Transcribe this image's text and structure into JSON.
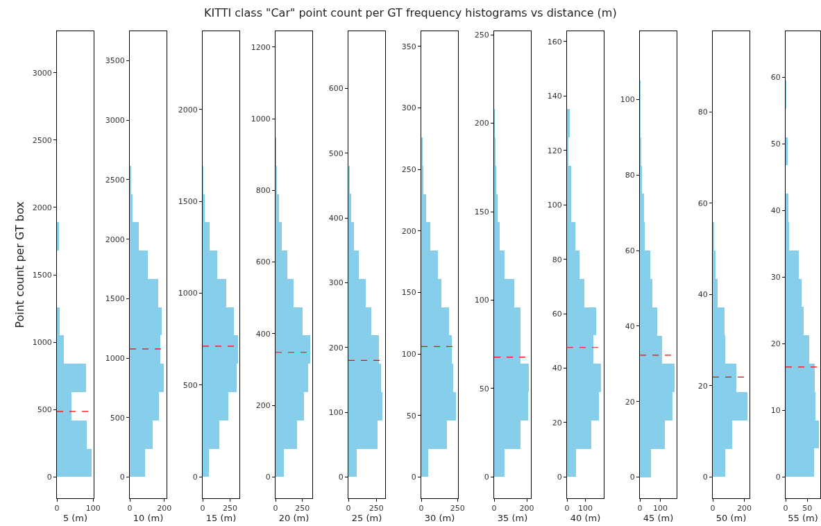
{
  "chart_data": [
    {
      "type": "histogram",
      "orientation": "horizontal",
      "ylabel": "Point count per GT box",
      "xlabel": "5 (m)",
      "color": "#87ceeb",
      "bins": [
        0,
        210,
        420,
        630,
        840,
        1050,
        1260,
        1470,
        1680,
        1890
      ],
      "values": [
        96,
        83,
        40,
        81,
        19,
        8,
        0,
        0,
        5
      ],
      "xlim": [
        0,
        101.5
      ],
      "xticks": [
        0,
        100
      ],
      "ylim": [
        -157.5,
        3307.5
      ],
      "yticks": [
        0,
        500,
        1000,
        1500,
        2000,
        2500,
        3000
      ],
      "ref_lines": [
        {
          "axis": "y",
          "value": 487,
          "color": "#ff0000",
          "line_style": "dashed"
        }
      ]
    },
    {
      "type": "histogram",
      "orientation": "horizontal",
      "xlabel": "10 (m)",
      "color": "#87ceeb",
      "bins": [
        0,
        238,
        476,
        714,
        952,
        1190,
        1428,
        1666,
        1904,
        2142,
        2380,
        2618
      ],
      "values": [
        88,
        132,
        169,
        198,
        176,
        183,
        163,
        103,
        53,
        18,
        6
      ],
      "xlim": [
        0,
        213
      ],
      "xticks": [
        0,
        200
      ],
      "ylim": [
        -178.5,
        3748.5
      ],
      "yticks": [
        0,
        500,
        1000,
        1500,
        2000,
        2500,
        3000,
        3500
      ],
      "ref_lines": [
        {
          "axis": "y",
          "value": 1077,
          "color": "#ff0000",
          "line_style": "dashed"
        }
      ]
    },
    {
      "type": "histogram",
      "orientation": "horizontal",
      "xlabel": "15 (m)",
      "color": "#87ceeb",
      "bins": [
        0,
        154,
        308,
        462,
        616,
        770,
        924,
        1078,
        1232,
        1386,
        1540,
        1694
      ],
      "values": [
        60,
        152,
        232,
        312,
        321,
        283,
        214,
        134,
        62,
        21,
        6
      ],
      "xlim": [
        0,
        336
      ],
      "xticks": [
        0,
        250
      ],
      "ylim": [
        -115.5,
        2425.5
      ],
      "yticks": [
        0,
        500,
        1000,
        1500,
        2000
      ],
      "ref_lines": [
        {
          "axis": "y",
          "value": 712,
          "color": "#ff0000",
          "line_style": "dashed"
        }
      ]
    },
    {
      "type": "histogram",
      "orientation": "horizontal",
      "xlabel": "20 (m)",
      "color": "#87ceeb",
      "bins": [
        0,
        79,
        158,
        237,
        316,
        395,
        474,
        553,
        632,
        711,
        790,
        869,
        948
      ],
      "values": [
        80,
        199,
        265,
        301,
        321,
        250,
        167,
        107,
        57,
        30,
        15,
        6
      ],
      "xlim": [
        0,
        342
      ],
      "xticks": [
        0,
        250
      ],
      "ylim": [
        -59.25,
        1244.25
      ],
      "yticks": [
        0,
        200,
        400,
        600,
        800,
        1000,
        1200
      ],
      "ref_lines": [
        {
          "axis": "y",
          "value": 348,
          "color": "#ff0000",
          "line_style": "dashed"
        }
      ]
    },
    {
      "type": "histogram",
      "orientation": "horizontal",
      "xlabel": "25 (m)",
      "color": "#87ceeb",
      "bins": [
        0,
        43.7,
        87.4,
        131.1,
        174.8,
        218.5,
        262.2,
        305.9,
        349.6,
        393.3,
        437,
        480.7
      ],
      "values": [
        75,
        261,
        307,
        293,
        273,
        207,
        158,
        92,
        49,
        23,
        9
      ],
      "xlim": [
        0,
        330
      ],
      "xticks": [
        0,
        250
      ],
      "ylim": [
        -32.8,
        688.2
      ],
      "yticks": [
        0,
        100,
        200,
        300,
        400,
        500,
        600
      ],
      "ref_lines": [
        {
          "axis": "y",
          "value": 180,
          "color": "#ff0000",
          "line_style": "dashed"
        }
      ]
    },
    {
      "type": "histogram",
      "orientation": "horizontal",
      "title": "KITTI class \"Car\" point count per GT frequency histograms vs distance (m)",
      "xlabel": "30 (m)",
      "color": "#87ceeb",
      "bins": [
        0,
        23,
        46,
        69,
        92,
        115,
        138,
        161,
        184,
        207,
        230,
        253,
        276
      ],
      "values": [
        50,
        178,
        241,
        221,
        209,
        194,
        140,
        113,
        61,
        32,
        14,
        9
      ],
      "xlim": [
        0,
        254
      ],
      "xticks": [
        0,
        250
      ],
      "ylim": [
        -17.25,
        362.25
      ],
      "yticks": [
        0,
        50,
        100,
        150,
        200,
        250,
        300,
        350
      ],
      "ref_lines": [
        {
          "axis": "y",
          "value": 106,
          "color": "#ff0000",
          "line_style": "dashed"
        }
      ]
    },
    {
      "type": "histogram",
      "orientation": "horizontal",
      "xlabel": "35 (m)",
      "color": "#87ceeb",
      "bins": [
        0,
        16,
        32,
        48,
        64,
        80,
        96,
        112,
        128,
        144,
        160,
        176,
        192,
        208
      ],
      "values": [
        65,
        163,
        206,
        212,
        162,
        163,
        121,
        62,
        33,
        23,
        12,
        8,
        4
      ],
      "xlim": [
        0,
        225
      ],
      "xticks": [
        0,
        200
      ],
      "ylim": [
        -12,
        252
      ],
      "yticks": [
        0,
        50,
        100,
        150,
        200,
        250
      ],
      "ref_lines": [
        {
          "axis": "y",
          "value": 67.8,
          "color": "#ff0000",
          "line_style": "dashed"
        }
      ]
    },
    {
      "type": "histogram",
      "orientation": "horizontal",
      "xlabel": "40 (m)",
      "color": "#87ceeb",
      "bins": [
        0,
        10.4,
        20.8,
        31.2,
        41.6,
        52,
        62.4,
        72.8,
        83.2,
        93.6,
        104,
        114.4,
        124.8,
        135.2
      ],
      "values": [
        50,
        131,
        172,
        184,
        145,
        157,
        95,
        67,
        45,
        24,
        21,
        9,
        14
      ],
      "xlim": [
        0,
        200
      ],
      "xticks": [
        0,
        100
      ],
      "ylim": [
        -7.8,
        163.8
      ],
      "yticks": [
        0,
        20,
        40,
        60,
        80,
        100,
        120,
        140,
        160
      ],
      "ref_lines": [
        {
          "axis": "y",
          "value": 47.6,
          "color": "#ff0000",
          "line_style": "dashed"
        }
      ]
    },
    {
      "type": "histogram",
      "orientation": "horizontal",
      "xlabel": "45 (m)",
      "color": "#87ceeb",
      "bins": [
        0,
        7.5,
        15,
        22.5,
        30,
        37.5,
        45,
        52.5,
        60,
        67.5,
        75,
        82.5,
        90,
        97.5,
        105
      ],
      "values": [
        55,
        122,
        158,
        169,
        109,
        84,
        62,
        52,
        23,
        20,
        11,
        4,
        3,
        3
      ],
      "xlim": [
        0,
        180
      ],
      "xticks": [
        0,
        100
      ],
      "ylim": [
        -5.6,
        118.1
      ],
      "yticks": [
        0,
        20,
        40,
        60,
        80,
        100
      ],
      "ref_lines": [
        {
          "axis": "y",
          "value": 32.3,
          "color": "#ff0000",
          "line_style": "dashed"
        }
      ]
    },
    {
      "type": "histogram",
      "orientation": "horizontal",
      "xlabel": "50 (m)",
      "color": "#87ceeb",
      "bins": [
        0,
        6.2,
        12.4,
        18.6,
        24.8,
        31,
        37.2,
        43.4,
        49.6,
        55.8
      ],
      "values": [
        78,
        124,
        221,
        148,
        78,
        74,
        31,
        16,
        6
      ],
      "xlim": [
        0,
        233
      ],
      "xticks": [
        0,
        200
      ],
      "ylim": [
        -4.65,
        97.65
      ],
      "yticks": [
        0,
        20,
        40,
        60,
        80
      ],
      "ref_lines": [
        {
          "axis": "y",
          "value": 21.9,
          "color": "#ff0000",
          "line_style": "dashed"
        }
      ]
    },
    {
      "type": "histogram",
      "orientation": "horizontal",
      "xlabel": "55 (m)",
      "color": "#87ceeb",
      "bins": [
        0,
        4.25,
        8.5,
        12.75,
        17,
        21.25,
        25.5,
        29.75,
        34,
        38.25,
        42.5,
        46.75,
        51,
        55.25,
        59.5
      ],
      "values": [
        66,
        76,
        69,
        67,
        54,
        41,
        37,
        30,
        8,
        6,
        0,
        5,
        0,
        1
      ],
      "xlim": [
        0,
        80
      ],
      "xticks": [
        0,
        50
      ],
      "ylim": [
        -3.2,
        66.9
      ],
      "yticks": [
        0,
        10,
        20,
        30,
        40,
        50,
        60
      ],
      "ref_lines": [
        {
          "axis": "y",
          "value": 16.5,
          "color": "#ff0000",
          "line_style": "dashed"
        }
      ]
    }
  ]
}
